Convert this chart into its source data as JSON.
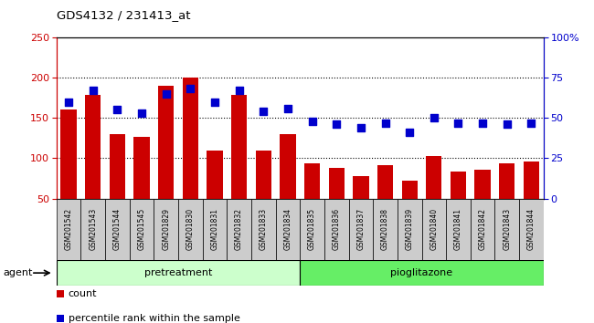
{
  "title": "GDS4132 / 231413_at",
  "samples": [
    "GSM201542",
    "GSM201543",
    "GSM201544",
    "GSM201545",
    "GSM201829",
    "GSM201830",
    "GSM201831",
    "GSM201832",
    "GSM201833",
    "GSM201834",
    "GSM201835",
    "GSM201836",
    "GSM201837",
    "GSM201838",
    "GSM201839",
    "GSM201840",
    "GSM201841",
    "GSM201842",
    "GSM201843",
    "GSM201844"
  ],
  "counts": [
    160,
    178,
    130,
    126,
    190,
    200,
    110,
    178,
    110,
    130,
    94,
    88,
    78,
    92,
    72,
    103,
    84,
    86,
    94,
    96
  ],
  "percentiles": [
    60,
    67,
    55,
    53,
    65,
    68,
    60,
    67,
    54,
    56,
    48,
    46,
    44,
    47,
    41,
    50,
    47,
    47,
    46,
    47
  ],
  "pretreatment_count": 10,
  "pioglitazone_count": 10,
  "ylim_left": [
    50,
    250
  ],
  "yticks_left": [
    50,
    100,
    150,
    200,
    250
  ],
  "ylim_right": [
    0,
    100
  ],
  "yticks_right": [
    0,
    25,
    50,
    75,
    100
  ],
  "bar_color": "#cc0000",
  "dot_color": "#0000cc",
  "pretreatment_color": "#ccffcc",
  "pioglitazone_color": "#66ee66",
  "agent_label": "agent",
  "pretreatment_label": "pretreatment",
  "pioglitazone_label": "pioglitazone",
  "legend_count_label": "count",
  "legend_pct_label": "percentile rank within the sample",
  "dotted_lines": [
    100,
    150,
    200
  ],
  "xlabel_gray": "#cccccc",
  "fig_width": 6.5,
  "fig_height": 3.54
}
